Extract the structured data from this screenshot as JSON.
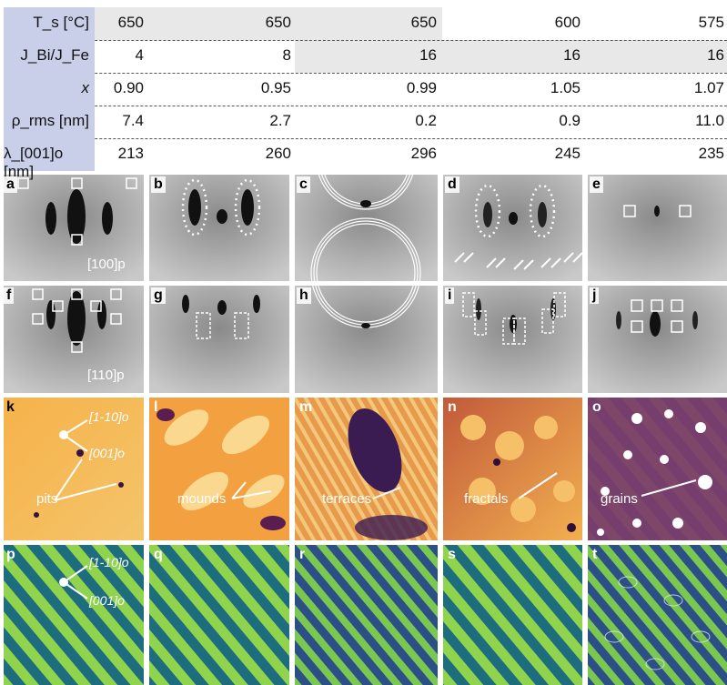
{
  "table": {
    "rows": [
      {
        "label": "T_s [°C]",
        "values": [
          "650",
          "650",
          "650",
          "600",
          "575"
        ]
      },
      {
        "label": "J_Bi/J_Fe",
        "values": [
          "4",
          "8",
          "16",
          "16",
          "16"
        ]
      },
      {
        "label": "x",
        "values": [
          "0.90",
          "0.95",
          "0.99",
          "1.05",
          "1.07"
        ]
      },
      {
        "label": "ρ_rms [nm]",
        "values": [
          "7.4",
          "2.7",
          "0.2",
          "0.9",
          "11.0"
        ]
      },
      {
        "label": "λ_[001]o [nm]",
        "values": [
          "213",
          "260",
          "296",
          "245",
          "235"
        ]
      }
    ]
  },
  "panels": {
    "row1": [
      "a",
      "b",
      "c",
      "d",
      "e"
    ],
    "row2": [
      "f",
      "g",
      "h",
      "i",
      "j"
    ],
    "row3": [
      "k",
      "l",
      "m",
      "n",
      "o"
    ],
    "row4": [
      "p",
      "q",
      "r",
      "s",
      "t"
    ]
  },
  "annotations": {
    "dir_100p": "[100]p",
    "dir_110p": "[110]p",
    "dir_1m10o_k": "[1-10]o",
    "dir_001o_k": "[001]o",
    "pits": "pits",
    "mounds": "mounds",
    "terraces": "terraces",
    "fractals": "fractals",
    "grains": "grains",
    "dir_1m10o_p": "[1-10]o",
    "dir_001o_p": "[001]o"
  }
}
